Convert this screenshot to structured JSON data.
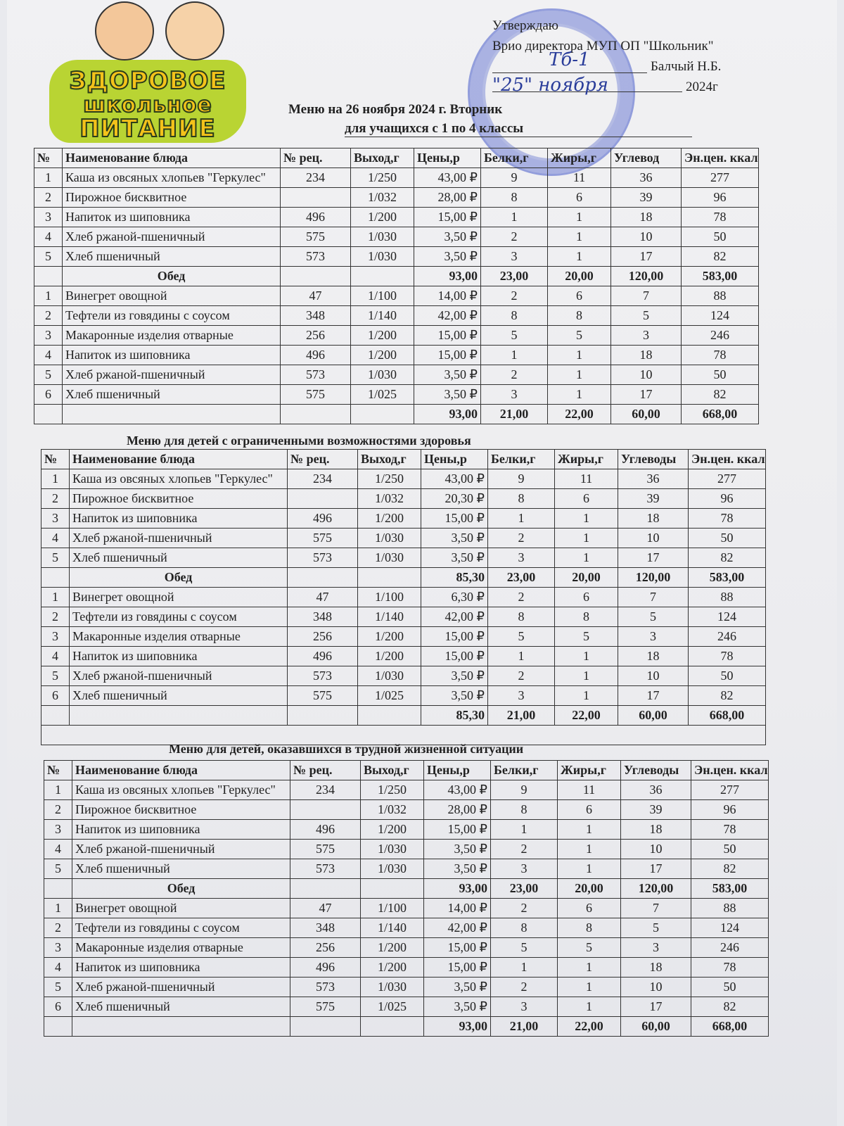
{
  "logo": {
    "line1": "ЗДОРОВОЕ",
    "line2": "школьное",
    "line3": "ПИТАНИЕ"
  },
  "approval": {
    "line1": "Утверждаю",
    "line2": "Врио директора МУП ОП \"Школьник\"",
    "signer": "Балчый Н.Б.",
    "date_day": "\"25\"",
    "date_month": "ноября",
    "year": "2024г"
  },
  "title": "Меню на 26 ноября 2024 г. Вторник",
  "subtitle": "для учащихся с 1 по 4 классы",
  "colors": {
    "stamp": "#4a5ac8",
    "logo_yellow": "#f4c21a",
    "logo_green": "#b9d433"
  },
  "tables": [
    {
      "headers": [
        "№",
        "Наименование блюда",
        "№ рец.",
        "Выход,г",
        "Цены,р",
        "Белки,г",
        "Жиры,г",
        "Углевод",
        "Эн.цен. ккал"
      ],
      "breakfast": [
        [
          "1",
          "Каша из овсяных хлопьев \"Геркулес\"",
          "234",
          "1/250",
          "43,00 ₽",
          "9",
          "11",
          "36",
          "277"
        ],
        [
          "2",
          "Пирожное бисквитное",
          "",
          "1/032",
          "28,00 ₽",
          "8",
          "6",
          "39",
          "96"
        ],
        [
          "3",
          "Напиток из шиповника",
          "496",
          "1/200",
          "15,00 ₽",
          "1",
          "1",
          "18",
          "78"
        ],
        [
          "4",
          "Хлеб ржаной-пшеничный",
          "575",
          "1/030",
          "3,50 ₽",
          "2",
          "1",
          "10",
          "50"
        ],
        [
          "5",
          "Хлеб пшеничный",
          "573",
          "1/030",
          "3,50 ₽",
          "3",
          "1",
          "17",
          "82"
        ]
      ],
      "lunch_label": "Обед",
      "breakfast_total": [
        "93,00",
        "23,00",
        "20,00",
        "120,00",
        "583,00"
      ],
      "lunch": [
        [
          "1",
          "Винегрет овощной",
          "47",
          "1/100",
          "14,00 ₽",
          "2",
          "6",
          "7",
          "88"
        ],
        [
          "2",
          "Тефтели из говядины с соусом",
          "348",
          "1/140",
          "42,00 ₽",
          "8",
          "8",
          "5",
          "124"
        ],
        [
          "3",
          "Макаронные изделия отварные",
          "256",
          "1/200",
          "15,00 ₽",
          "5",
          "5",
          "3",
          "246"
        ],
        [
          "4",
          "Напиток из шиповника",
          "496",
          "1/200",
          "15,00 ₽",
          "1",
          "1",
          "18",
          "78"
        ],
        [
          "5",
          "Хлеб ржаной-пшеничный",
          "573",
          "1/030",
          "3,50 ₽",
          "2",
          "1",
          "10",
          "50"
        ],
        [
          "6",
          "Хлеб пшеничный",
          "575",
          "1/025",
          "3,50 ₽",
          "3",
          "1",
          "17",
          "82"
        ]
      ],
      "lunch_total": [
        "93,00",
        "21,00",
        "22,00",
        "60,00",
        "668,00"
      ]
    },
    {
      "section_title": "Меню для детей с ограниченными возможностями здоровья",
      "headers": [
        "№",
        "Наименование блюда",
        "№ рец.",
        "Выход,г",
        "Цены,р",
        "Белки,г",
        "Жиры,г",
        "Углеводы",
        "Эн.цен. ккал"
      ],
      "breakfast": [
        [
          "1",
          "Каша из овсяных хлопьев \"Геркулес\"",
          "234",
          "1/250",
          "43,00 ₽",
          "9",
          "11",
          "36",
          "277"
        ],
        [
          "2",
          "Пирожное бисквитное",
          "",
          "1/032",
          "20,30 ₽",
          "8",
          "6",
          "39",
          "96"
        ],
        [
          "3",
          "Напиток из шиповника",
          "496",
          "1/200",
          "15,00 ₽",
          "1",
          "1",
          "18",
          "78"
        ],
        [
          "4",
          "Хлеб ржаной-пшеничный",
          "575",
          "1/030",
          "3,50 ₽",
          "2",
          "1",
          "10",
          "50"
        ],
        [
          "5",
          "Хлеб пшеничный",
          "573",
          "1/030",
          "3,50 ₽",
          "3",
          "1",
          "17",
          "82"
        ]
      ],
      "lunch_label": "Обед",
      "breakfast_total": [
        "85,30",
        "23,00",
        "20,00",
        "120,00",
        "583,00"
      ],
      "lunch": [
        [
          "1",
          "Винегрет овощной",
          "47",
          "1/100",
          "6,30 ₽",
          "2",
          "6",
          "7",
          "88"
        ],
        [
          "2",
          "Тефтели из говядины с соусом",
          "348",
          "1/140",
          "42,00 ₽",
          "8",
          "8",
          "5",
          "124"
        ],
        [
          "3",
          "Макаронные изделия отварные",
          "256",
          "1/200",
          "15,00 ₽",
          "5",
          "5",
          "3",
          "246"
        ],
        [
          "4",
          "Напиток из шиповника",
          "496",
          "1/200",
          "15,00 ₽",
          "1",
          "1",
          "18",
          "78"
        ],
        [
          "5",
          "Хлеб ржаной-пшеничный",
          "573",
          "1/030",
          "3,50 ₽",
          "2",
          "1",
          "10",
          "50"
        ],
        [
          "6",
          "Хлеб пшеничный",
          "575",
          "1/025",
          "3,50 ₽",
          "3",
          "1",
          "17",
          "82"
        ]
      ],
      "lunch_total": [
        "85,30",
        "21,00",
        "22,00",
        "60,00",
        "668,00"
      ]
    },
    {
      "section_title": "Меню для детей, оказавшихся в трудной жизненной ситуации",
      "headers": [
        "№",
        "Наименование блюда",
        "№ рец.",
        "Выход,г",
        "Цены,р",
        "Белки,г",
        "Жиры,г",
        "Углеводы",
        "Эн.цен. ккал"
      ],
      "breakfast": [
        [
          "1",
          "Каша из овсяных хлопьев \"Геркулес\"",
          "234",
          "1/250",
          "43,00 ₽",
          "9",
          "11",
          "36",
          "277"
        ],
        [
          "2",
          "Пирожное бисквитное",
          "",
          "1/032",
          "28,00 ₽",
          "8",
          "6",
          "39",
          "96"
        ],
        [
          "3",
          "Напиток из шиповника",
          "496",
          "1/200",
          "15,00 ₽",
          "1",
          "1",
          "18",
          "78"
        ],
        [
          "4",
          "Хлеб ржаной-пшеничный",
          "575",
          "1/030",
          "3,50 ₽",
          "2",
          "1",
          "10",
          "50"
        ],
        [
          "5",
          "Хлеб пшеничный",
          "573",
          "1/030",
          "3,50 ₽",
          "3",
          "1",
          "17",
          "82"
        ]
      ],
      "lunch_label": "Обед",
      "breakfast_total": [
        "93,00",
        "23,00",
        "20,00",
        "120,00",
        "583,00"
      ],
      "lunch": [
        [
          "1",
          "Винегрет овощной",
          "47",
          "1/100",
          "14,00 ₽",
          "2",
          "6",
          "7",
          "88"
        ],
        [
          "2",
          "Тефтели из говядины с соусом",
          "348",
          "1/140",
          "42,00 ₽",
          "8",
          "8",
          "5",
          "124"
        ],
        [
          "3",
          "Макаронные изделия отварные",
          "256",
          "1/200",
          "15,00 ₽",
          "5",
          "5",
          "3",
          "246"
        ],
        [
          "4",
          "Напиток из шиповника",
          "496",
          "1/200",
          "15,00 ₽",
          "1",
          "1",
          "18",
          "78"
        ],
        [
          "5",
          "Хлеб ржаной-пшеничный",
          "573",
          "1/030",
          "3,50 ₽",
          "2",
          "1",
          "10",
          "50"
        ],
        [
          "6",
          "Хлеб пшеничный",
          "575",
          "1/025",
          "3,50 ₽",
          "3",
          "1",
          "17",
          "82"
        ]
      ],
      "lunch_total": [
        "93,00",
        "21,00",
        "22,00",
        "60,00",
        "668,00"
      ]
    }
  ]
}
